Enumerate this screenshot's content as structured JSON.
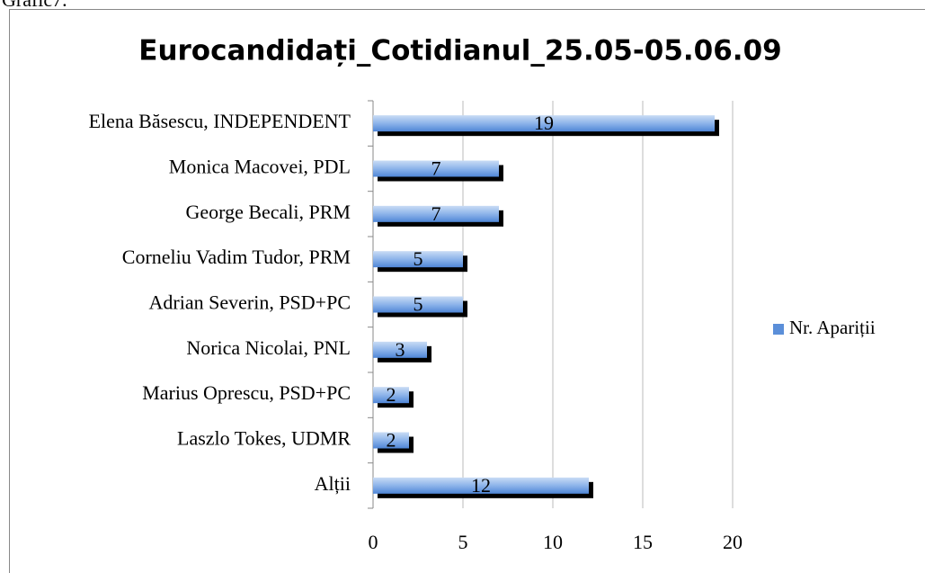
{
  "caption": "Grafic7.",
  "chart_data": {
    "type": "bar",
    "orientation": "horizontal",
    "title": "Eurocandidați_Cotidianul_25.05-05.06.09",
    "categories": [
      "Elena Băsescu, INDEPENDENT",
      "Monica Macovei, PDL",
      "George Becali, PRM",
      "Corneliu Vadim Tudor, PRM",
      "Adrian Severin, PSD+PC",
      "Norica Nicolai, PNL",
      "Marius Oprescu, PSD+PC",
      "Laszlo Tokes, UDMR",
      "Alții"
    ],
    "series": [
      {
        "name": "Nr. Apariții",
        "color": "#5b8fd9",
        "values": [
          19,
          7,
          7,
          5,
          5,
          3,
          2,
          2,
          12
        ]
      }
    ],
    "xlim": [
      0,
      20
    ],
    "xticks": [
      0,
      5,
      10,
      15,
      20
    ],
    "grid": true,
    "legend": "right"
  }
}
